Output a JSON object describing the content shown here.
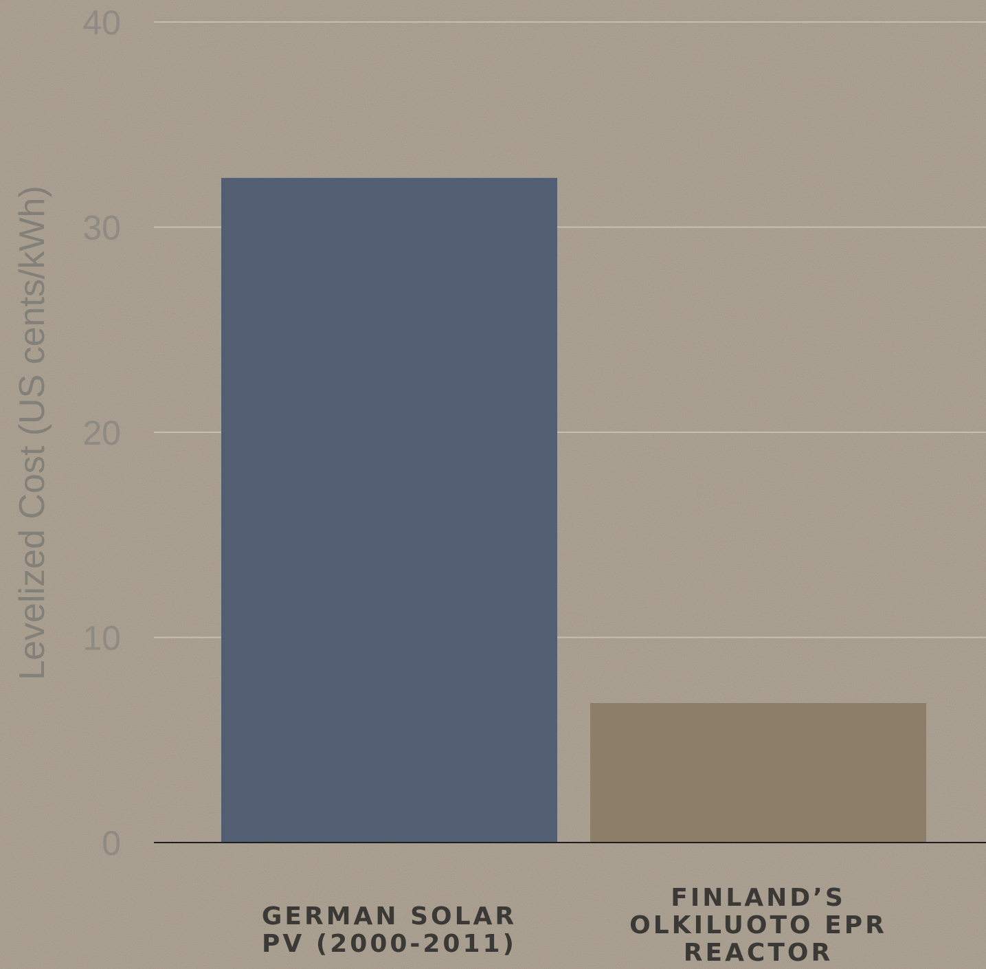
{
  "chart_data": {
    "type": "bar",
    "title": "",
    "xlabel": "",
    "ylabel": "Levelized Cost (US cents/kWh)",
    "ylim": [
      0,
      40
    ],
    "yticks": [
      0,
      10,
      20,
      30,
      40
    ],
    "grid": true,
    "categories": [
      [
        "GERMAN SOLAR",
        "PV (2000-2011)"
      ],
      [
        "FINLAND’S",
        "OLKILUOTO EPR",
        "REACTOR"
      ]
    ],
    "values": [
      32.4,
      6.8
    ],
    "colors": [
      "#525f72",
      "#8c7e68"
    ],
    "gridColor": "#c7beb2",
    "axisColor": "#1e1e1e"
  }
}
